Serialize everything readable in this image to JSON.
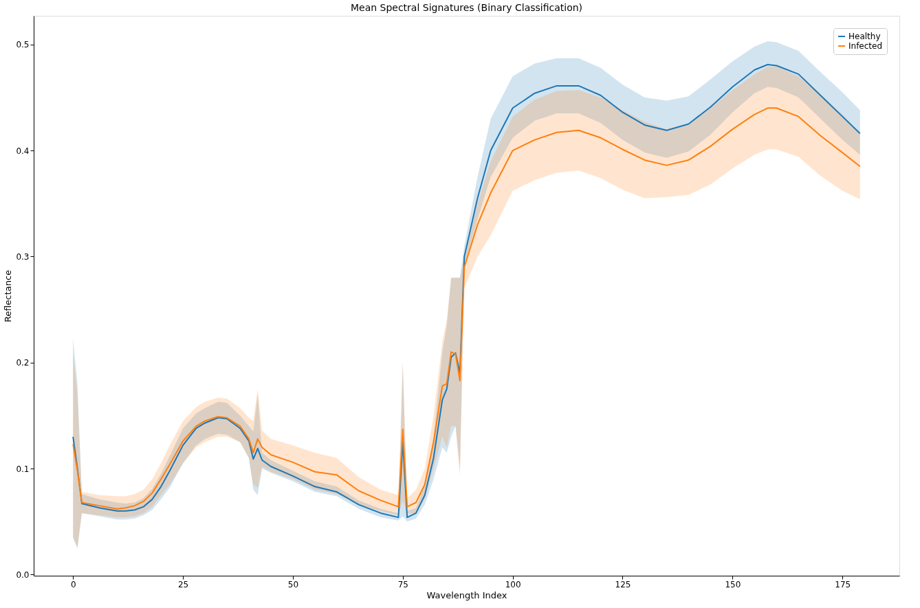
{
  "chart_data": {
    "type": "line",
    "title": "Mean Spectral Signatures (Binary Classification)",
    "xlabel": "Wavelength Index",
    "ylabel": "Reflectance",
    "x": [
      0,
      1,
      2,
      6,
      10,
      12,
      14,
      16,
      18,
      20,
      22,
      25,
      28,
      30,
      33,
      35,
      38,
      40,
      41,
      42,
      43,
      45,
      50,
      55,
      60,
      65,
      70,
      74,
      75,
      76,
      78,
      80,
      82,
      84,
      85,
      86,
      87,
      88,
      89,
      92,
      95,
      100,
      105,
      110,
      115,
      120,
      125,
      130,
      135,
      140,
      145,
      150,
      155,
      158,
      160,
      165,
      170,
      175,
      179
    ],
    "series": [
      {
        "name": "Healthy",
        "color": "#1f77b4",
        "values": [
          0.13,
          0.1,
          0.067,
          0.063,
          0.06,
          0.06,
          0.061,
          0.064,
          0.071,
          0.083,
          0.098,
          0.122,
          0.138,
          0.143,
          0.148,
          0.147,
          0.138,
          0.126,
          0.109,
          0.119,
          0.108,
          0.102,
          0.093,
          0.083,
          0.078,
          0.066,
          0.058,
          0.054,
          0.125,
          0.054,
          0.058,
          0.075,
          0.11,
          0.165,
          0.175,
          0.205,
          0.209,
          0.19,
          0.3,
          0.355,
          0.4,
          0.44,
          0.454,
          0.461,
          0.461,
          0.452,
          0.436,
          0.424,
          0.419,
          0.425,
          0.441,
          0.46,
          0.476,
          0.481,
          0.48,
          0.472,
          0.452,
          0.432,
          0.416
        ],
        "lower": [
          0.035,
          0.025,
          0.058,
          0.055,
          0.052,
          0.052,
          0.053,
          0.056,
          0.061,
          0.071,
          0.082,
          0.105,
          0.122,
          0.128,
          0.133,
          0.132,
          0.125,
          0.11,
          0.08,
          0.075,
          0.1,
          0.096,
          0.088,
          0.078,
          0.074,
          0.062,
          0.054,
          0.051,
          0.055,
          0.05,
          0.053,
          0.066,
          0.09,
          0.12,
          0.115,
          0.13,
          0.14,
          0.1,
          0.29,
          0.335,
          0.375,
          0.412,
          0.428,
          0.435,
          0.435,
          0.426,
          0.41,
          0.398,
          0.393,
          0.399,
          0.415,
          0.436,
          0.454,
          0.46,
          0.459,
          0.45,
          0.43,
          0.41,
          0.396
        ],
        "upper": [
          0.223,
          0.18,
          0.076,
          0.071,
          0.068,
          0.067,
          0.068,
          0.072,
          0.081,
          0.095,
          0.112,
          0.138,
          0.152,
          0.157,
          0.163,
          0.162,
          0.15,
          0.14,
          0.135,
          0.17,
          0.115,
          0.108,
          0.098,
          0.088,
          0.083,
          0.07,
          0.062,
          0.058,
          0.2,
          0.06,
          0.063,
          0.085,
          0.13,
          0.21,
          0.235,
          0.28,
          0.28,
          0.28,
          0.31,
          0.375,
          0.43,
          0.47,
          0.482,
          0.487,
          0.487,
          0.478,
          0.462,
          0.45,
          0.447,
          0.451,
          0.467,
          0.484,
          0.498,
          0.503,
          0.502,
          0.494,
          0.474,
          0.455,
          0.438
        ]
      },
      {
        "name": "Infected",
        "color": "#ff7f0e",
        "values": [
          0.123,
          0.098,
          0.068,
          0.065,
          0.062,
          0.063,
          0.065,
          0.069,
          0.077,
          0.09,
          0.104,
          0.126,
          0.14,
          0.145,
          0.149,
          0.148,
          0.14,
          0.128,
          0.115,
          0.128,
          0.12,
          0.113,
          0.106,
          0.097,
          0.094,
          0.079,
          0.07,
          0.064,
          0.137,
          0.064,
          0.068,
          0.085,
          0.125,
          0.178,
          0.18,
          0.21,
          0.208,
          0.183,
          0.29,
          0.33,
          0.36,
          0.4,
          0.41,
          0.417,
          0.419,
          0.412,
          0.401,
          0.391,
          0.386,
          0.391,
          0.404,
          0.42,
          0.434,
          0.44,
          0.44,
          0.432,
          0.414,
          0.398,
          0.385
        ],
        "lower": [
          0.035,
          0.025,
          0.058,
          0.056,
          0.054,
          0.054,
          0.055,
          0.058,
          0.064,
          0.075,
          0.085,
          0.105,
          0.12,
          0.125,
          0.13,
          0.13,
          0.125,
          0.11,
          0.085,
          0.082,
          0.102,
          0.097,
          0.09,
          0.08,
          0.076,
          0.066,
          0.06,
          0.056,
          0.07,
          0.058,
          0.058,
          0.072,
          0.1,
          0.13,
          0.12,
          0.14,
          0.14,
          0.093,
          0.27,
          0.3,
          0.32,
          0.362,
          0.372,
          0.379,
          0.381,
          0.374,
          0.363,
          0.355,
          0.356,
          0.358,
          0.368,
          0.383,
          0.396,
          0.401,
          0.401,
          0.394,
          0.376,
          0.362,
          0.354
        ],
        "upper": [
          0.21,
          0.17,
          0.078,
          0.075,
          0.074,
          0.074,
          0.076,
          0.08,
          0.09,
          0.105,
          0.122,
          0.145,
          0.158,
          0.163,
          0.167,
          0.166,
          0.157,
          0.148,
          0.145,
          0.175,
          0.136,
          0.128,
          0.122,
          0.115,
          0.11,
          0.092,
          0.08,
          0.075,
          0.2,
          0.072,
          0.08,
          0.1,
          0.15,
          0.22,
          0.24,
          0.28,
          0.28,
          0.28,
          0.3,
          0.35,
          0.39,
          0.432,
          0.448,
          0.456,
          0.457,
          0.45,
          0.438,
          0.427,
          0.42,
          0.424,
          0.44,
          0.457,
          0.472,
          0.479,
          0.479,
          0.47,
          0.452,
          0.434,
          0.416
        ]
      }
    ],
    "xlim": [
      -8.95,
      187.95
    ],
    "xticks": [
      0,
      25,
      50,
      75,
      100,
      125,
      150,
      175
    ],
    "ylim": [
      -0.001,
      0.527
    ],
    "yticks": [
      {
        "value": 0,
        "label": "0.0"
      },
      {
        "value": 0.1,
        "label": "0.1"
      },
      {
        "value": 0.2,
        "label": "0.2"
      },
      {
        "value": 0.3,
        "label": "0.3"
      },
      {
        "value": 0.4,
        "label": "0.4"
      },
      {
        "value": 0.5,
        "label": "0.5"
      }
    ],
    "grid": false,
    "legend": "top right",
    "marker": "none",
    "line_style": "solid"
  }
}
